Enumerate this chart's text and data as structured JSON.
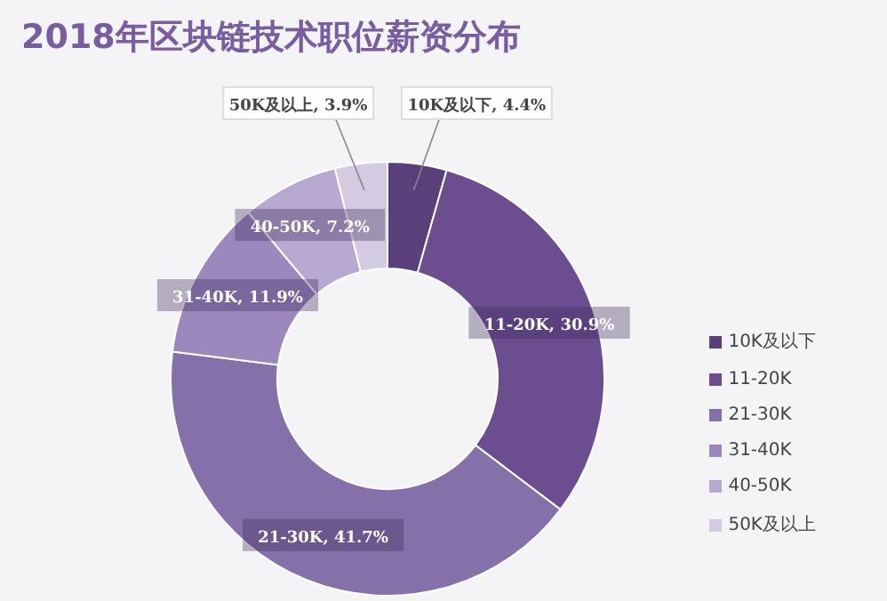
{
  "chart_data": {
    "type": "donut",
    "title": "2018年区块链技术职位薪资分布",
    "categories": [
      "10K及以下",
      "11-20K",
      "21-30K",
      "31-40K",
      "40-50K",
      "50K及以上"
    ],
    "values": [
      4.4,
      30.9,
      41.7,
      11.9,
      7.2,
      3.9
    ],
    "value_labels": [
      "10K及以下, 4.4%",
      "11-20K, 30.9%",
      "21-30K, 41.7%",
      "31-40K, 11.9%",
      "40-50K, 7.2%",
      "50K及以上, 3.9%"
    ],
    "colors": [
      "#5b3f7a",
      "#6b4d90",
      "#8670aa",
      "#9c88bd",
      "#b6a8d0",
      "#d3cbe2"
    ],
    "legend": "right"
  }
}
